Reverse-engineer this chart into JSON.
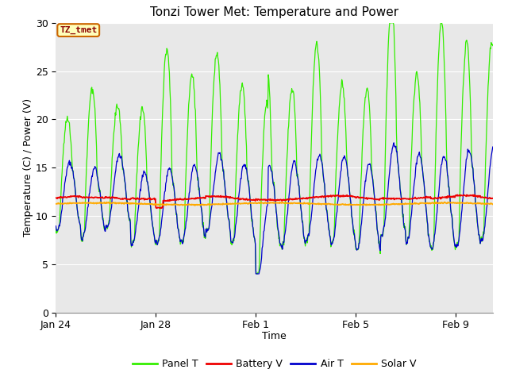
{
  "title": "Tonzi Tower Met: Temperature and Power",
  "xlabel": "Time",
  "ylabel": "Temperature (C) / Power (V)",
  "xlim_days": [
    0,
    17.5
  ],
  "ylim": [
    0,
    30
  ],
  "yticks": [
    0,
    5,
    10,
    15,
    20,
    25,
    30
  ],
  "xtick_positions": [
    0,
    4,
    8,
    12,
    16
  ],
  "xtick_labels": [
    "Jan 24",
    "Jan 28",
    "Feb 1",
    "Feb 5",
    "Feb 9"
  ],
  "legend_labels": [
    "Panel T",
    "Battery V",
    "Air T",
    "Solar V"
  ],
  "legend_colors": [
    "#33ee00",
    "#ee0000",
    "#0000cc",
    "#ffaa00"
  ],
  "annotation_text": "TZ_tmet",
  "bg_color": "#dcdcdc",
  "plot_bg": "#e8e8e8",
  "title_fontsize": 11,
  "axis_fontsize": 9,
  "tick_fontsize": 9
}
